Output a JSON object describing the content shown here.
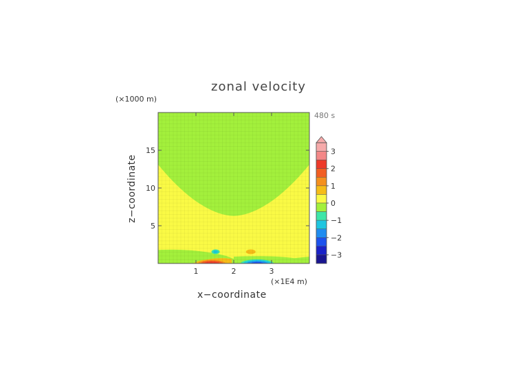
{
  "chart_data": {
    "type": "heatmap",
    "title": "zonal velocity",
    "xlabel": "x−coordinate",
    "ylabel": "z−coordinate",
    "x_unit": "(×1E4 m)",
    "y_unit": "(×1000 m)",
    "time_label": "480 s",
    "xlim": [
      0,
      4
    ],
    "ylim": [
      0,
      20
    ],
    "x_ticks": [
      {
        "value": 1,
        "label": "1"
      },
      {
        "value": 2,
        "label": "2"
      },
      {
        "value": 3,
        "label": "3"
      }
    ],
    "y_ticks": [
      {
        "value": 5,
        "label": "5"
      },
      {
        "value": 10,
        "label": "10"
      },
      {
        "value": 15,
        "label": "15"
      }
    ],
    "colorbar": {
      "min": -3.5,
      "max": 3.5,
      "step": 0.5,
      "extend": "max",
      "tick_labels": [
        {
          "value": 3,
          "label": "3"
        },
        {
          "value": 2,
          "label": "2"
        },
        {
          "value": 1,
          "label": "1"
        },
        {
          "value": 0,
          "label": "0"
        },
        {
          "value": -1,
          "label": "−1"
        },
        {
          "value": -2,
          "label": "−2"
        },
        {
          "value": -3,
          "label": "−3"
        }
      ],
      "levels": [
        {
          "lo": 3.0,
          "hi": 3.5,
          "color": "#f6aaaa"
        },
        {
          "lo": 2.5,
          "hi": 3.0,
          "color": "#f48888"
        },
        {
          "lo": 2.0,
          "hi": 2.5,
          "color": "#ee3a2a"
        },
        {
          "lo": 1.5,
          "hi": 2.0,
          "color": "#f25e22"
        },
        {
          "lo": 1.0,
          "hi": 1.5,
          "color": "#f5901e"
        },
        {
          "lo": 0.5,
          "hi": 1.0,
          "color": "#f6bd18"
        },
        {
          "lo": 0.0,
          "hi": 0.5,
          "color": "#fafa45"
        },
        {
          "lo": -0.5,
          "hi": 0.0,
          "color": "#a3f03c"
        },
        {
          "lo": -1.0,
          "hi": -0.5,
          "color": "#3ee6a8"
        },
        {
          "lo": -1.5,
          "hi": -1.0,
          "color": "#1ec6e0"
        },
        {
          "lo": -2.0,
          "hi": -1.5,
          "color": "#1f8cf0"
        },
        {
          "lo": -2.5,
          "hi": -2.0,
          "color": "#1c52ee"
        },
        {
          "lo": -3.0,
          "hi": -2.5,
          "color": "#1a22c8"
        },
        {
          "lo": -3.5,
          "hi": -3.0,
          "color": "#1a1690"
        }
      ]
    },
    "regions": [
      {
        "value_range": [
          0.0,
          0.5
        ],
        "description": "background"
      },
      {
        "value_range": [
          -0.5,
          0.0
        ],
        "description": "right half x>2 above surface layer; upper-left cap and lower surface layer"
      },
      {
        "value_range": [
          0.0,
          0.5
        ],
        "description": "bowl-shaped region dipping to z=6 at x=2"
      },
      {
        "value_range": [
          -1.5,
          -0.5
        ],
        "description": "small blob near x=1.5, z=1.5; strong minimum near x=2.6, z=0"
      },
      {
        "value_range": [
          0.5,
          2.5
        ],
        "description": "small blob near x=2.5, z=1.5; strong maximum near x=1.4, z=0"
      }
    ]
  }
}
